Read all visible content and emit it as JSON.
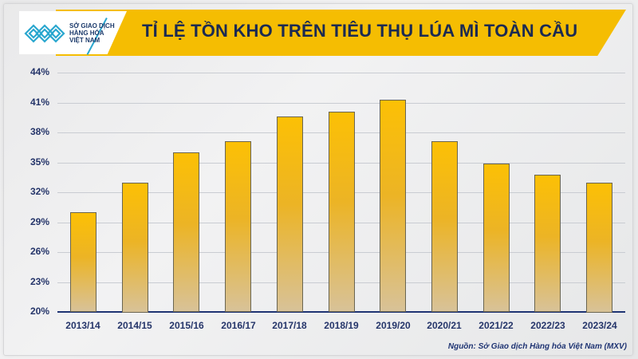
{
  "header": {
    "logo_lines": [
      "SỞ GIAO DỊCH",
      "HÀNG HÓA",
      "VIỆT NAM"
    ],
    "title": "TỈ LỆ TỒN KHO TRÊN TIÊU THỤ LÚA MÌ TOÀN CẦU"
  },
  "colors": {
    "banner": "#f5bd02",
    "title_text": "#1b2a52",
    "bar_top": "#fcc005",
    "bar_bottom": "#d8c298",
    "axis": "#1f3473",
    "logo_accent": "#2aa7cf"
  },
  "footer": {
    "source": "Nguồn: Sở Giao dịch Hàng hóa Việt Nam (MXV)"
  },
  "chart_data": {
    "type": "bar",
    "title": "TỈ LỆ TỒN KHO TRÊN TIÊU THỤ LÚA MÌ TOÀN CẦU",
    "xlabel": "",
    "ylabel": "",
    "categories": [
      "2013/14",
      "2014/15",
      "2015/16",
      "2016/17",
      "2017/18",
      "2018/19",
      "2019/20",
      "2020/21",
      "2021/22",
      "2022/23",
      "2023/24"
    ],
    "values": [
      30.0,
      33.0,
      36.0,
      37.1,
      39.6,
      40.1,
      41.3,
      37.1,
      34.9,
      33.8,
      33.0
    ],
    "unit": "%",
    "ylim": [
      20,
      44
    ],
    "yticks": [
      "20%",
      "23%",
      "26%",
      "29%",
      "32%",
      "35%",
      "38%",
      "41%",
      "44%"
    ],
    "grid": true,
    "legend": "none"
  }
}
